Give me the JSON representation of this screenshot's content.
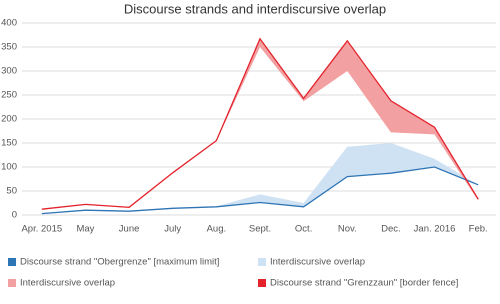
{
  "chart_data": {
    "type": "line",
    "title": "Discourse strands and interdiscursive overlap",
    "categories": [
      "Apr. 2015",
      "May",
      "June",
      "July",
      "Aug.",
      "Sept.",
      "Oct.",
      "Nov.",
      "Dec.",
      "Jan. 2016",
      "Feb."
    ],
    "ylim": [
      0,
      400
    ],
    "yticks": [
      0,
      50,
      100,
      150,
      200,
      250,
      300,
      350,
      400
    ],
    "grid": true,
    "legend": "bottom",
    "series": [
      {
        "name": "Discourse strand \"Obergrenze\" [maximum limit]",
        "type": "line",
        "color": "#2e75b6",
        "values": [
          3,
          10,
          8,
          14,
          17,
          26,
          17,
          80,
          87,
          100,
          63
        ]
      },
      {
        "name": "Interdiscursive overlap",
        "type": "area",
        "color": "#cfe2f3",
        "values": [
          1,
          1,
          1,
          1,
          1,
          17,
          8,
          62,
          63,
          17,
          0
        ]
      },
      {
        "name": "Interdiscursive overlap",
        "type": "area",
        "color": "#f2a0a2",
        "values": [
          1,
          1,
          1,
          1,
          1,
          17,
          6,
          63,
          66,
          15,
          3
        ]
      },
      {
        "name": "Discourse strand \"Grenzzaun\" [border fence]",
        "type": "line",
        "color": "#e3222b",
        "values": [
          12,
          22,
          16,
          88,
          155,
          367,
          243,
          363,
          238,
          183,
          33
        ]
      }
    ]
  }
}
